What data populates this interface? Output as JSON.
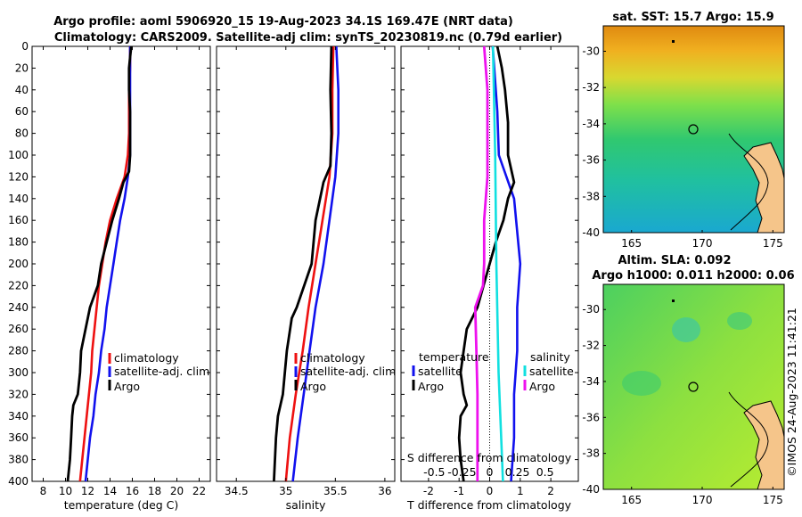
{
  "title": {
    "line1": "Argo profile: aoml 5906920_15 19-Aug-2023 34.1S 169.47E (NRT data)",
    "line2": "Climatology: CARS2009. Satellite-adj clim: synTS_20230819.nc (0.79d earlier)"
  },
  "colors": {
    "argo": "#000000",
    "climatology": "#ee1111",
    "satellite": "#1111ee",
    "sal_sat": "#11e0e0",
    "sal_argo": "#ee11ee"
  },
  "chart_data": [
    {
      "type": "line",
      "name": "temperature-profile",
      "xlabel": "temperature (deg C)",
      "ylabel": "",
      "xlim": [
        7,
        23
      ],
      "ylim": [
        400,
        0
      ],
      "xticks": [
        "8",
        "10",
        "12",
        "14",
        "16",
        "18",
        "20",
        "22"
      ],
      "yticks": [
        "0",
        "20",
        "40",
        "60",
        "80",
        "100",
        "120",
        "140",
        "160",
        "180",
        "200",
        "220",
        "240",
        "260",
        "280",
        "300",
        "320",
        "340",
        "360",
        "380",
        "400"
      ],
      "legend": [
        "climatology",
        "satellite-adj. clim",
        "Argo"
      ],
      "series": [
        {
          "name": "climatology",
          "depth": [
            0,
            20,
            40,
            60,
            80,
            100,
            120,
            140,
            160,
            180,
            200,
            220,
            240,
            260,
            280,
            300,
            320,
            340,
            360,
            380,
            400
          ],
          "values": [
            15.8,
            15.8,
            15.7,
            15.7,
            15.7,
            15.6,
            15.3,
            14.6,
            14.0,
            13.6,
            13.3,
            13.0,
            12.8,
            12.6,
            12.4,
            12.3,
            12.1,
            11.9,
            11.7,
            11.5,
            11.3
          ]
        },
        {
          "name": "satellite-adj. clim",
          "depth": [
            0,
            20,
            40,
            60,
            80,
            100,
            120,
            140,
            160,
            180,
            200,
            220,
            240,
            260,
            280,
            300,
            320,
            340,
            360,
            380,
            400
          ],
          "values": [
            15.8,
            15.8,
            15.8,
            15.8,
            15.8,
            15.8,
            15.6,
            15.3,
            14.9,
            14.6,
            14.3,
            14.0,
            13.7,
            13.5,
            13.2,
            13.0,
            12.7,
            12.5,
            12.2,
            12.0,
            11.8
          ]
        },
        {
          "name": "Argo",
          "depth": [
            0,
            10,
            20,
            40,
            60,
            80,
            100,
            115,
            125,
            140,
            160,
            180,
            200,
            220,
            240,
            250,
            260,
            280,
            300,
            320,
            330,
            340,
            360,
            380,
            400
          ],
          "values": [
            15.9,
            15.8,
            15.7,
            15.7,
            15.8,
            15.8,
            15.8,
            15.7,
            15.2,
            14.8,
            14.2,
            13.7,
            13.2,
            12.9,
            12.2,
            12.0,
            11.8,
            11.4,
            11.3,
            11.1,
            10.7,
            10.6,
            10.5,
            10.4,
            10.2
          ]
        }
      ]
    },
    {
      "type": "line",
      "name": "salinity-profile",
      "xlabel": "salinity",
      "ylabel": "",
      "xlim": [
        34.3,
        36.1
      ],
      "ylim": [
        400,
        0
      ],
      "xticks": [
        "34.5",
        "35",
        "35.5",
        "36"
      ],
      "legend": [
        "climatology",
        "satellite-adj. clim",
        "Argo"
      ],
      "series": [
        {
          "name": "climatology",
          "depth": [
            0,
            40,
            80,
            120,
            160,
            200,
            240,
            280,
            320,
            360,
            400
          ],
          "values": [
            35.48,
            35.47,
            35.47,
            35.44,
            35.37,
            35.3,
            35.23,
            35.17,
            35.1,
            35.04,
            35.0
          ]
        },
        {
          "name": "satellite-adj. clim",
          "depth": [
            0,
            40,
            80,
            120,
            160,
            200,
            240,
            280,
            320,
            360,
            400
          ],
          "values": [
            35.51,
            35.53,
            35.53,
            35.5,
            35.44,
            35.38,
            35.3,
            35.24,
            35.18,
            35.12,
            35.07
          ]
        },
        {
          "name": "Argo",
          "depth": [
            0,
            40,
            80,
            110,
            125,
            160,
            200,
            240,
            250,
            280,
            320,
            340,
            360,
            400
          ],
          "values": [
            35.46,
            35.45,
            35.46,
            35.45,
            35.38,
            35.3,
            35.26,
            35.11,
            35.06,
            35.01,
            34.97,
            34.92,
            34.9,
            34.88
          ]
        }
      ]
    },
    {
      "type": "line",
      "name": "difference-profile",
      "xlabel": "T difference from climatology",
      "xlim": [
        -2.9,
        2.9
      ],
      "ylim": [
        400,
        0
      ],
      "xticks": [
        "-2",
        "-1",
        "0",
        "1",
        "2"
      ],
      "top_axis_label": "S difference from climatology",
      "top_ticks": [
        "-0.5",
        "-0.25",
        "0",
        "0.25",
        "0.5"
      ],
      "legend_temperature": {
        "title": "temperature",
        "items": [
          "satellite",
          "Argo"
        ]
      },
      "legend_salinity": {
        "title": "salinity",
        "items": [
          "satellite",
          "Argo"
        ]
      },
      "series": [
        {
          "name": "temperature satellite",
          "depth": [
            0,
            60,
            100,
            140,
            200,
            240,
            280,
            320,
            360,
            400
          ],
          "values": [
            0.1,
            0.25,
            0.3,
            0.8,
            1.0,
            0.9,
            0.9,
            0.8,
            0.8,
            0.7
          ]
        },
        {
          "name": "temperature Argo",
          "depth": [
            0,
            20,
            40,
            70,
            100,
            125,
            140,
            160,
            180,
            200,
            220,
            240,
            260,
            280,
            300,
            320,
            330,
            340,
            360,
            380,
            400
          ],
          "values": [
            0.25,
            0.4,
            0.5,
            0.6,
            0.6,
            0.8,
            0.6,
            0.45,
            0.2,
            0.0,
            -0.2,
            -0.4,
            -0.75,
            -0.85,
            -0.95,
            -0.85,
            -0.75,
            -0.95,
            -1.0,
            -0.95,
            -0.85
          ]
        },
        {
          "name": "salinity satellite",
          "depth": [
            0,
            100,
            200,
            300,
            400
          ],
          "values": [
            0.03,
            0.05,
            0.06,
            0.08,
            0.12
          ]
        },
        {
          "name": "salinity Argo",
          "depth": [
            0,
            40,
            80,
            120,
            160,
            200,
            220,
            240,
            280,
            320,
            360,
            400
          ],
          "values": [
            -0.05,
            -0.02,
            -0.02,
            -0.02,
            -0.05,
            -0.05,
            -0.06,
            -0.13,
            -0.12,
            -0.11,
            -0.11,
            -0.11
          ]
        }
      ]
    }
  ],
  "maps": {
    "sst": {
      "title": "sat. SST: 15.7 Argo: 15.9",
      "xticks": [
        "165",
        "170",
        "175"
      ],
      "yticks": [
        "-30",
        "-32",
        "-34",
        "-36",
        "-38",
        "-40"
      ]
    },
    "sla": {
      "title1": "Altim. SLA: 0.092",
      "title2": "Argo h1000: 0.011 h2000: 0.06",
      "xticks": [
        "165",
        "170",
        "175"
      ],
      "yticks": [
        "-30",
        "-32",
        "-34",
        "-36",
        "-38",
        "-40"
      ]
    }
  },
  "footer": "©IMOS 24-Aug-2023 11:41:21"
}
